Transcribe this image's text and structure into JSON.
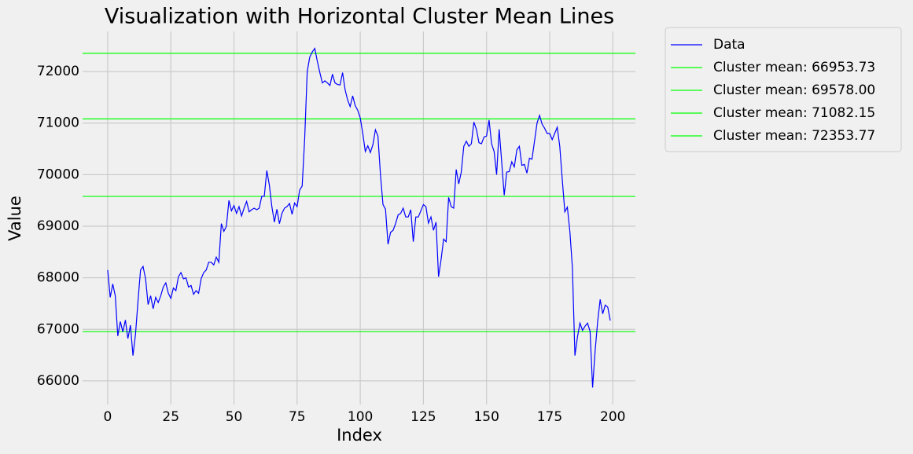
{
  "chart_data": {
    "type": "line",
    "title": "Visualization with Horizontal Cluster Mean Lines",
    "xlabel": "Index",
    "ylabel": "Value",
    "x": [
      0,
      1,
      2,
      3,
      4,
      5,
      6,
      7,
      8,
      9,
      10,
      11,
      12,
      13,
      14,
      15,
      16,
      17,
      18,
      19,
      20,
      21,
      22,
      23,
      24,
      25,
      26,
      27,
      28,
      29,
      30,
      31,
      32,
      33,
      34,
      35,
      36,
      37,
      38,
      39,
      40,
      41,
      42,
      43,
      44,
      45,
      46,
      47,
      48,
      49,
      50,
      51,
      52,
      53,
      54,
      55,
      56,
      57,
      58,
      59,
      60,
      61,
      62,
      63,
      64,
      65,
      66,
      67,
      68,
      69,
      70,
      71,
      72,
      73,
      74,
      75,
      76,
      77,
      78,
      79,
      80,
      81,
      82,
      83,
      84,
      85,
      86,
      87,
      88,
      89,
      90,
      91,
      92,
      93,
      94,
      95,
      96,
      97,
      98,
      99,
      100,
      101,
      102,
      103,
      104,
      105,
      106,
      107,
      108,
      109,
      110,
      111,
      112,
      113,
      114,
      115,
      116,
      117,
      118,
      119,
      120,
      121,
      122,
      123,
      124,
      125,
      126,
      127,
      128,
      129,
      130,
      131,
      132,
      133,
      134,
      135,
      136,
      137,
      138,
      139,
      140,
      141,
      142,
      143,
      144,
      145,
      146,
      147,
      148,
      149,
      150,
      151,
      152,
      153,
      154,
      155,
      156,
      157,
      158,
      159,
      160,
      161,
      162,
      163,
      164,
      165,
      166,
      167,
      168,
      169,
      170,
      171,
      172,
      173,
      174,
      175,
      176,
      177,
      178,
      179,
      180,
      181,
      182,
      183,
      184,
      185,
      186,
      187,
      188,
      189,
      190,
      191,
      192,
      193,
      194,
      195,
      196,
      197,
      198,
      199
    ],
    "series": [
      {
        "name": "Data",
        "color": "#0000ff",
        "values": [
          68150,
          67620,
          67880,
          67650,
          66870,
          67150,
          66950,
          67180,
          66820,
          67080,
          66490,
          66900,
          67550,
          68150,
          68220,
          67980,
          67480,
          67650,
          67400,
          67620,
          67520,
          67650,
          67820,
          67900,
          67700,
          67600,
          67800,
          67750,
          68020,
          68100,
          67980,
          68000,
          67820,
          67850,
          67680,
          67750,
          67700,
          67980,
          68100,
          68150,
          68300,
          68300,
          68250,
          68400,
          68300,
          69050,
          68900,
          69000,
          69500,
          69300,
          69400,
          69250,
          69380,
          69200,
          69350,
          69480,
          69280,
          69320,
          69350,
          69320,
          69350,
          69580,
          69580,
          70080,
          69800,
          69380,
          69080,
          69330,
          69050,
          69250,
          69350,
          69380,
          69440,
          69230,
          69450,
          69380,
          69700,
          69780,
          70700,
          72000,
          72280,
          72380,
          72450,
          72200,
          71980,
          71780,
          71820,
          71780,
          71730,
          71950,
          71780,
          71750,
          71740,
          71980,
          71650,
          71450,
          71320,
          71530,
          71340,
          71250,
          71100,
          70800,
          70450,
          70560,
          70430,
          70580,
          70870,
          70750,
          70000,
          69420,
          69330,
          68650,
          68880,
          68920,
          69050,
          69220,
          69250,
          69350,
          69180,
          69180,
          69320,
          68700,
          69180,
          69180,
          69300,
          69420,
          69380,
          69060,
          69180,
          68920,
          69080,
          68020,
          68350,
          68750,
          68700,
          69560,
          69380,
          69350,
          70100,
          69820,
          70050,
          70550,
          70650,
          70550,
          70600,
          71020,
          70880,
          70620,
          70600,
          70730,
          70750,
          71060,
          70600,
          70450,
          70000,
          70880,
          70250,
          69600,
          70050,
          70060,
          70250,
          70150,
          70480,
          70550,
          70180,
          70200,
          70030,
          70320,
          70300,
          70650,
          71000,
          71150,
          70980,
          70900,
          70800,
          70800,
          70680,
          70800,
          70920,
          70550,
          69900,
          69280,
          69370,
          68900,
          68200,
          66490,
          66850,
          67120,
          66980,
          67060,
          67120,
          66960,
          65870,
          66580,
          67150,
          67580,
          67300,
          67470,
          67430,
          67170
        ]
      }
    ],
    "hlines": [
      {
        "name": "Cluster mean: 66953.73",
        "color": "#00ff00",
        "value": 66953.73
      },
      {
        "name": "Cluster mean: 69578.00",
        "color": "#00ff00",
        "value": 69578.0
      },
      {
        "name": "Cluster mean: 71082.15",
        "color": "#00ff00",
        "value": 71082.15
      },
      {
        "name": "Cluster mean: 72353.77",
        "color": "#00ff00",
        "value": 72353.77
      }
    ],
    "xlim": [
      -9.95,
      208.95
    ],
    "ylim": [
      65541,
      72779
    ],
    "xticks": [
      0,
      25,
      50,
      75,
      100,
      125,
      150,
      175,
      200
    ],
    "yticks": [
      66000,
      67000,
      68000,
      69000,
      70000,
      71000,
      72000
    ],
    "grid": true,
    "legend": "outside right"
  }
}
